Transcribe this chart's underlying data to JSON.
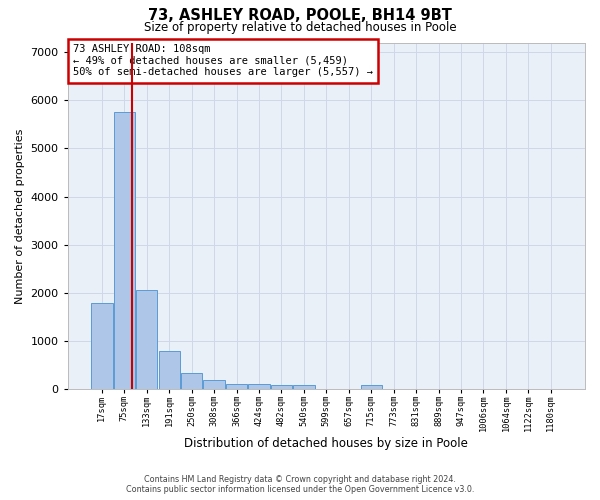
{
  "title_line1": "73, ASHLEY ROAD, POOLE, BH14 9BT",
  "title_line2": "Size of property relative to detached houses in Poole",
  "xlabel": "Distribution of detached houses by size in Poole",
  "ylabel": "Number of detached properties",
  "categories": [
    "17sqm",
    "75sqm",
    "133sqm",
    "191sqm",
    "250sqm",
    "308sqm",
    "366sqm",
    "424sqm",
    "482sqm",
    "540sqm",
    "599sqm",
    "657sqm",
    "715sqm",
    "773sqm",
    "831sqm",
    "889sqm",
    "947sqm",
    "1006sqm",
    "1064sqm",
    "1122sqm",
    "1180sqm"
  ],
  "values": [
    1780,
    5750,
    2050,
    800,
    330,
    195,
    110,
    100,
    95,
    80,
    0,
    0,
    80,
    0,
    0,
    0,
    0,
    0,
    0,
    0,
    0
  ],
  "bar_color": "#aec6e8",
  "bar_edge_color": "#5b9bd5",
  "annotation_text": "73 ASHLEY ROAD: 108sqm\n← 49% of detached houses are smaller (5,459)\n50% of semi-detached houses are larger (5,557) →",
  "annotation_box_color": "#ffffff",
  "annotation_box_edge_color": "#cc0000",
  "vline_color": "#cc0000",
  "vline_x": 1.35,
  "ylim": [
    0,
    7200
  ],
  "yticks": [
    0,
    1000,
    2000,
    3000,
    4000,
    5000,
    6000,
    7000
  ],
  "grid_color": "#d0d8e8",
  "background_color": "#eaf0f8",
  "footer_line1": "Contains HM Land Registry data © Crown copyright and database right 2024.",
  "footer_line2": "Contains public sector information licensed under the Open Government Licence v3.0."
}
